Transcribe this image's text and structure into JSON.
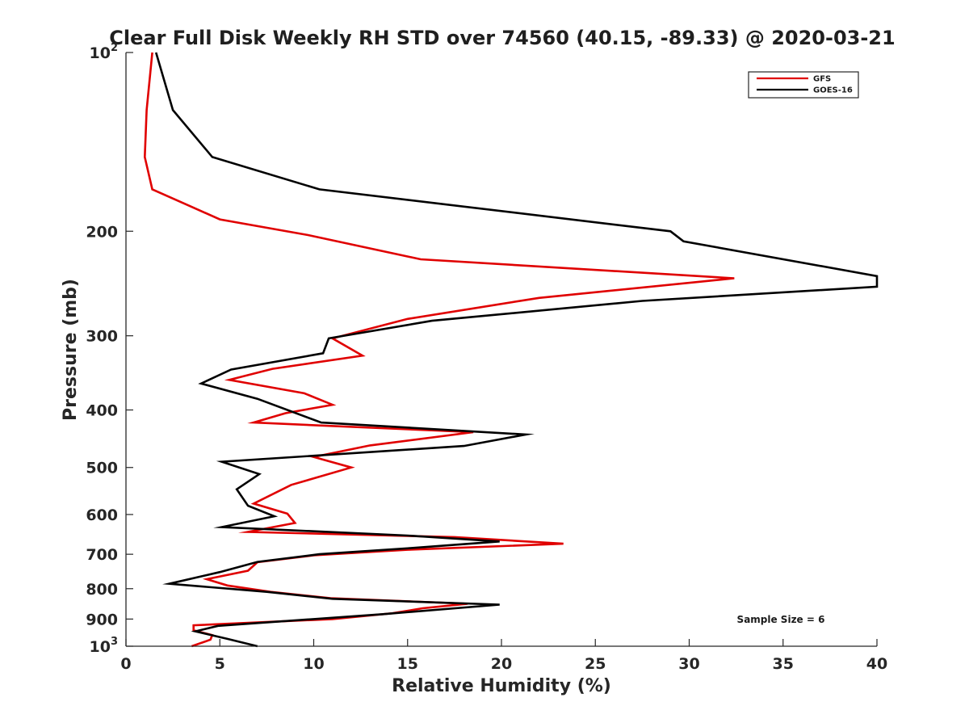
{
  "chart_data": {
    "type": "line",
    "title": "Clear Full Disk Weekly RH STD over 74560 (40.15, -89.33) @ 2020-03-21",
    "xlabel": "Relative Humidity (%)",
    "ylabel": "Pressure (mb)",
    "xlim": [
      0,
      40
    ],
    "ylim": [
      100,
      1000
    ],
    "y_scale": "log",
    "y_reversed": true,
    "x_ticks": [
      "0",
      "5",
      "10",
      "15",
      "20",
      "25",
      "30",
      "35",
      "40"
    ],
    "y_ticks": [
      {
        "value": 100,
        "base": "10",
        "sup": "2"
      },
      {
        "value": 200,
        "base": "200",
        "sup": ""
      },
      {
        "value": 300,
        "base": "300",
        "sup": ""
      },
      {
        "value": 400,
        "base": "400",
        "sup": ""
      },
      {
        "value": 500,
        "base": "500",
        "sup": ""
      },
      {
        "value": 600,
        "base": "600",
        "sup": ""
      },
      {
        "value": 700,
        "base": "700",
        "sup": ""
      },
      {
        "value": 800,
        "base": "800",
        "sup": ""
      },
      {
        "value": 900,
        "base": "900",
        "sup": ""
      },
      {
        "value": 1000,
        "base": "10",
        "sup": "3"
      }
    ],
    "grid": false,
    "legend_position": "top-right",
    "annotation": "Sample Size = 6",
    "series": [
      {
        "name": "GFS",
        "color": "#e00000",
        "points": [
          [
            1.4,
            100
          ],
          [
            1.1,
            125
          ],
          [
            1.0,
            150
          ],
          [
            1.4,
            170
          ],
          [
            5.0,
            191
          ],
          [
            9.7,
            203
          ],
          [
            15.7,
            223
          ],
          [
            32.4,
            240
          ],
          [
            22.0,
            259
          ],
          [
            15.0,
            281
          ],
          [
            11.0,
            303
          ],
          [
            12.6,
            324
          ],
          [
            7.8,
            341
          ],
          [
            5.5,
            356
          ],
          [
            9.5,
            375
          ],
          [
            11.0,
            392
          ],
          [
            8.5,
            405
          ],
          [
            6.8,
            420
          ],
          [
            18.5,
            436
          ],
          [
            13.0,
            459
          ],
          [
            10.0,
            480
          ],
          [
            12.0,
            500
          ],
          [
            8.8,
            535
          ],
          [
            6.8,
            575
          ],
          [
            8.6,
            598
          ],
          [
            9.0,
            620
          ],
          [
            6.5,
            642
          ],
          [
            17.5,
            655
          ],
          [
            23.3,
            672
          ],
          [
            15.0,
            688
          ],
          [
            10.0,
            703
          ],
          [
            7.0,
            722
          ],
          [
            6.5,
            746
          ],
          [
            4.3,
            771
          ],
          [
            5.4,
            790
          ],
          [
            7.7,
            810
          ],
          [
            10.9,
            830
          ],
          [
            18.2,
            848
          ],
          [
            15.8,
            863
          ],
          [
            14.2,
            880
          ],
          [
            11.0,
            900
          ],
          [
            3.6,
            922
          ],
          [
            3.6,
            940
          ],
          [
            4.6,
            958
          ],
          [
            4.5,
            975
          ],
          [
            3.5,
            1000
          ]
        ]
      },
      {
        "name": "GOES-16",
        "color": "#000000",
        "points": [
          [
            1.6,
            100
          ],
          [
            2.5,
            125
          ],
          [
            4.6,
            150
          ],
          [
            10.3,
            170
          ],
          [
            29.0,
            200
          ],
          [
            29.7,
            208
          ],
          [
            40.0,
            238
          ],
          [
            40.0,
            248
          ],
          [
            27.5,
            262
          ],
          [
            16.3,
            283
          ],
          [
            10.8,
            303
          ],
          [
            10.5,
            321
          ],
          [
            5.6,
            342
          ],
          [
            4.0,
            361
          ],
          [
            7.0,
            383
          ],
          [
            10.4,
            420
          ],
          [
            21.3,
            440
          ],
          [
            18.0,
            460
          ],
          [
            5.1,
            489
          ],
          [
            7.1,
            513
          ],
          [
            5.9,
            544
          ],
          [
            6.5,
            580
          ],
          [
            7.9,
            604
          ],
          [
            5.1,
            630
          ],
          [
            15.0,
            651
          ],
          [
            19.9,
            666
          ],
          [
            15.0,
            684
          ],
          [
            10.3,
            700
          ],
          [
            7.0,
            721
          ],
          [
            5.0,
            750
          ],
          [
            2.3,
            785
          ],
          [
            7.5,
            810
          ],
          [
            11.0,
            832
          ],
          [
            19.9,
            851
          ],
          [
            13.7,
            883
          ],
          [
            10.0,
            900
          ],
          [
            4.9,
            924
          ],
          [
            3.7,
            944
          ],
          [
            5.4,
            972
          ],
          [
            7.0,
            1000
          ]
        ]
      }
    ]
  }
}
